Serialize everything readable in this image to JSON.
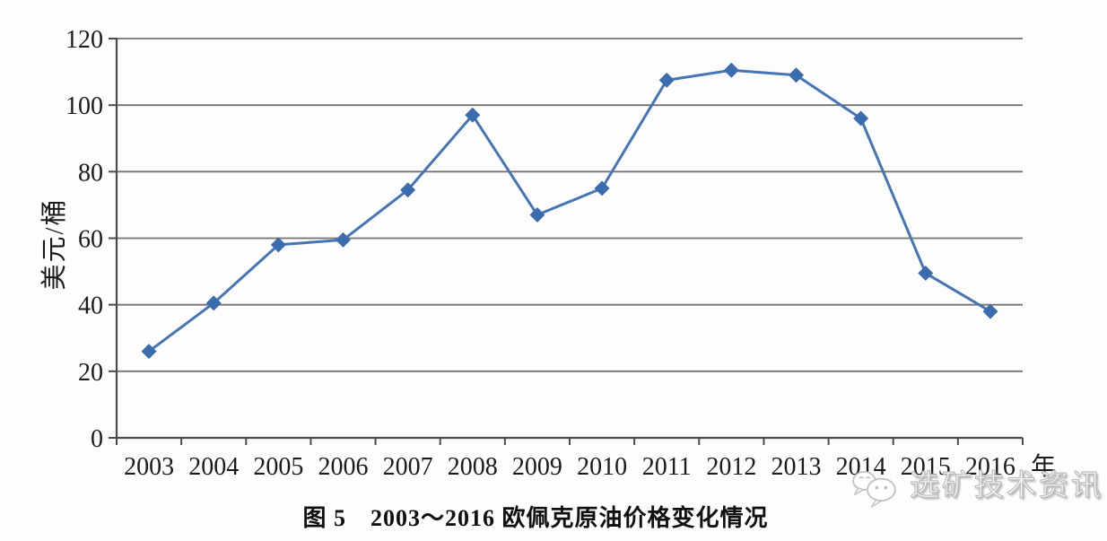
{
  "figure": {
    "caption": "图 5　2003～2016 欧佩克原油价格变化情况",
    "watermark_text": "选矿技术资讯",
    "watermark_icon": "wechat-logo-icon"
  },
  "chart_data": {
    "type": "line",
    "title": "图 5 2003～2016 欧佩克原油价格变化情况",
    "categories": [
      "2003",
      "2004",
      "2005",
      "2006",
      "2007",
      "2008",
      "2009",
      "2010",
      "2011",
      "2012",
      "2013",
      "2014",
      "2015",
      "2016"
    ],
    "series": [
      {
        "name": "欧佩克原油价格",
        "values": [
          26,
          40.5,
          58,
          59.5,
          74.5,
          97,
          67,
          75,
          107.5,
          110.5,
          109,
          96,
          49.5,
          38
        ]
      }
    ],
    "xlabel": "年",
    "ylabel": "美元/桶",
    "ylim": [
      0,
      120
    ],
    "y_ticks": [
      0,
      20,
      40,
      60,
      80,
      100,
      120
    ],
    "grid": true,
    "legend_position": "none",
    "marker": "diamond",
    "line_color": "#4575b4",
    "marker_color": "#3a6cae",
    "gridline_color": "#77726e",
    "axis_color": "#4d4b49",
    "text_color": "#1b1b1b"
  }
}
